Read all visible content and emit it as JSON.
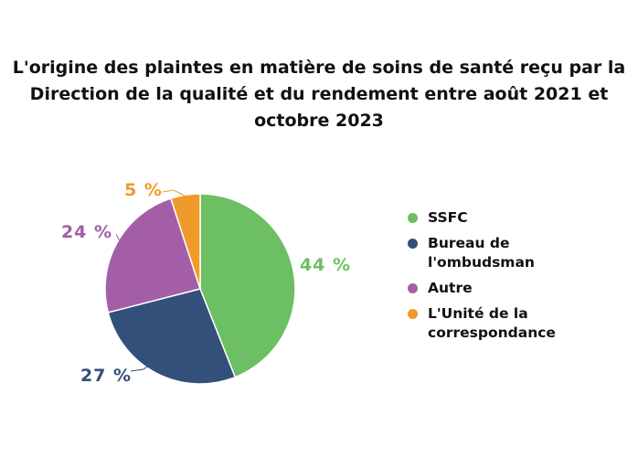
{
  "chart_data": {
    "type": "pie",
    "title_lines": [
      "L'origine des plaintes en matière de soins de santé reçu par la",
      "Direction de la qualité et du rendement entre août 2021 et",
      "octobre 2023"
    ],
    "categories": [
      "SSFC",
      "Bureau de l'ombudsman",
      "Autre",
      "L'Unité de la correspondance"
    ],
    "legend_lines": [
      [
        "SSFC"
      ],
      [
        "Bureau de",
        "l'ombudsman"
      ],
      [
        "Autre"
      ],
      [
        "L'Unité de la",
        "correspondance"
      ]
    ],
    "values": [
      44,
      27,
      24,
      5
    ],
    "data_labels": [
      "44 %",
      "27 %",
      "24 %",
      "5 %"
    ],
    "colors": [
      "#6cbf63",
      "#33507a",
      "#a45ea7",
      "#ef9a2b"
    ],
    "legend_position": "right"
  }
}
